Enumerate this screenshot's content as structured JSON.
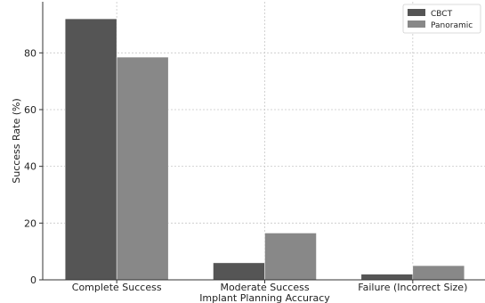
{
  "chart_data": {
    "type": "bar",
    "title": "",
    "xlabel": "Implant Planning Accuracy",
    "ylabel": "Success Rate (%)",
    "categories": [
      "Complete Success",
      "Moderate Success",
      "Failure (Incorrect Size)"
    ],
    "series": [
      {
        "name": "CBCT",
        "values": [
          92,
          6,
          2
        ],
        "color": "#555555"
      },
      {
        "name": "Panoramic",
        "values": [
          78.5,
          16.5,
          5
        ],
        "color": "#888888"
      }
    ],
    "ylim": [
      0,
      98
    ],
    "yticks": [
      0,
      20,
      40,
      60,
      80
    ],
    "grid": true,
    "legend_position": "top-right"
  }
}
